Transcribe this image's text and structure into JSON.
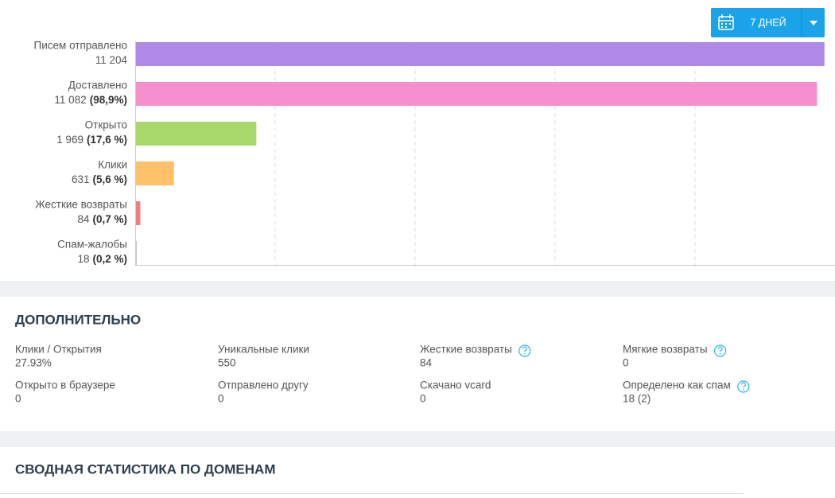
{
  "button": {
    "label": "7 ДНЕЙ"
  },
  "chart_data": {
    "type": "bar",
    "orientation": "horizontal",
    "categories": [
      "Писем отправлено",
      "Доставлено",
      "Открыто",
      "Клики",
      "Жесткие возвраты",
      "Спам-жалобы"
    ],
    "values": [
      11204,
      11082,
      1969,
      631,
      84,
      18
    ],
    "value_labels": [
      "11 204",
      "11 082",
      "1 969",
      "631",
      "84",
      "18"
    ],
    "percent_labels": [
      null,
      "(98,9%)",
      "(17,6 %)",
      "(5,6 %)",
      "(0,7 %)",
      "(0,2 %)"
    ],
    "colors": [
      "#b088e8",
      "#f48fcc",
      "#a8d86a",
      "#ffc069",
      "#ee7f7f",
      "#8a8a8a"
    ],
    "xlim": [
      0,
      11375
    ],
    "grid": true
  },
  "extra": {
    "title": "ДОПОЛНИТЕЛЬНО",
    "stats": [
      {
        "label": "Клики / Открытия",
        "value": "27.93%",
        "help": false
      },
      {
        "label": "Уникальные клики",
        "value": "550",
        "help": false
      },
      {
        "label": "Жесткие возвраты",
        "value": "84",
        "help": true
      },
      {
        "label": "Мягкие возвраты",
        "value": "0",
        "help": true
      },
      {
        "label": "Открыто в браузере",
        "value": "0",
        "help": false
      },
      {
        "label": "Отправлено другу",
        "value": "0",
        "help": false
      },
      {
        "label": "Скачано vcard",
        "value": "0",
        "help": false
      },
      {
        "label": "Определено как спам",
        "value": "18 (2)",
        "help": true
      }
    ]
  },
  "domains": {
    "title": "СВОДНАЯ СТАТИСТИКА ПО ДОМЕНАМ"
  }
}
